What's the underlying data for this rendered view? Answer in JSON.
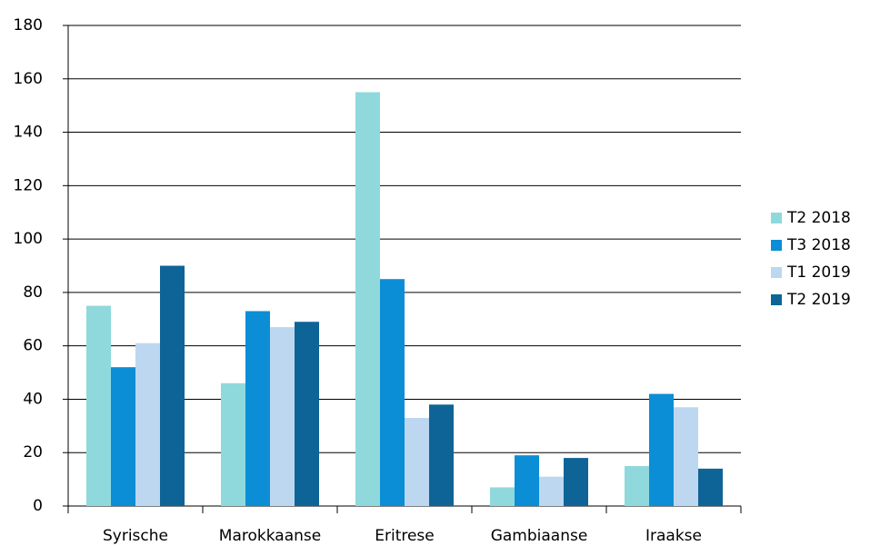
{
  "chart_data": {
    "type": "bar",
    "categories": [
      "Syrische",
      "Marokkaanse",
      "Eritrese",
      "Gambiaanse",
      "Iraakse"
    ],
    "series": [
      {
        "name": "T2 2018",
        "color": "#8fd9dc",
        "values": [
          75,
          46,
          155,
          7,
          15
        ]
      },
      {
        "name": "T3 2018",
        "color": "#0b8ed6",
        "values": [
          52,
          73,
          85,
          19,
          42
        ]
      },
      {
        "name": "T1 2019",
        "color": "#bdd7f1",
        "values": [
          61,
          67,
          33,
          11,
          37
        ]
      },
      {
        "name": "T2 2019",
        "color": "#0e6497",
        "values": [
          90,
          69,
          38,
          18,
          14
        ]
      }
    ],
    "ylim": [
      0,
      180
    ],
    "yticks": [
      0,
      20,
      40,
      60,
      80,
      100,
      120,
      140,
      160,
      180
    ],
    "grid": true,
    "legend": "right"
  }
}
